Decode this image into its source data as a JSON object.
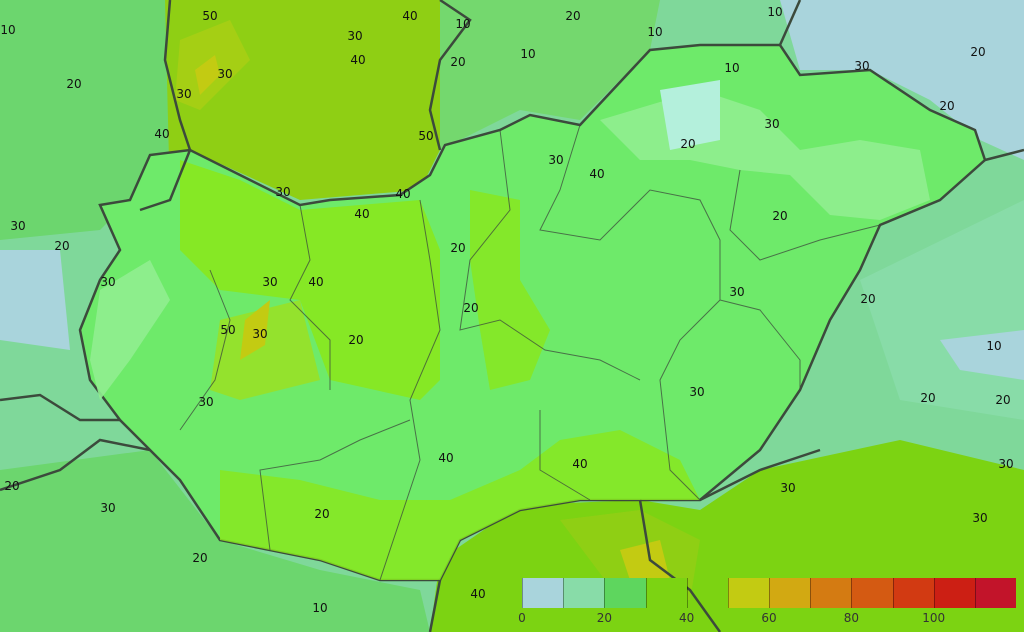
{
  "map": {
    "region": "Hungary",
    "contour_labels": [
      "10",
      "20",
      "30",
      "40",
      "50",
      "30",
      "40",
      "20",
      "10",
      "10",
      "20",
      "30",
      "10",
      "10",
      "20",
      "30",
      "20",
      "10",
      "20",
      "30",
      "40",
      "30",
      "40",
      "50",
      "30",
      "40",
      "40",
      "20",
      "30",
      "20",
      "30",
      "30",
      "40",
      "50",
      "30",
      "20",
      "20",
      "20",
      "30",
      "20",
      "10",
      "30",
      "20",
      "20",
      "30",
      "40",
      "40",
      "30",
      "30",
      "20",
      "30",
      "20",
      "20",
      "10",
      "30",
      "40"
    ],
    "colors": {
      "hungary_fill": "#6eea6a",
      "outside_fill": "#7fd89a",
      "border": "#3c4a3c"
    }
  },
  "legend": {
    "ticks": [
      "0",
      "20",
      "40",
      "60",
      "80",
      "100"
    ],
    "bins": [
      {
        "from": 0,
        "to": 10,
        "color": "#a9d4dc"
      },
      {
        "from": 10,
        "to": 20,
        "color": "#88dca8"
      },
      {
        "from": 20,
        "to": 30,
        "color": "#5ed65e"
      },
      {
        "from": 30,
        "to": 40,
        "color": "#7cd312"
      },
      {
        "from": 40,
        "to": 50,
        "color": "transparent"
      },
      {
        "from": 50,
        "to": 60,
        "color": "#c3cb12"
      },
      {
        "from": 60,
        "to": 70,
        "color": "#d2a912"
      },
      {
        "from": 70,
        "to": 80,
        "color": "#d47b12"
      },
      {
        "from": 80,
        "to": 90,
        "color": "#d45a12"
      },
      {
        "from": 90,
        "to": 100,
        "color": "#d23a12"
      },
      {
        "from": 100,
        "to": 110,
        "color": "#cc1f14"
      },
      {
        "from": 110,
        "to": 120,
        "color": "#c2142a"
      }
    ]
  }
}
